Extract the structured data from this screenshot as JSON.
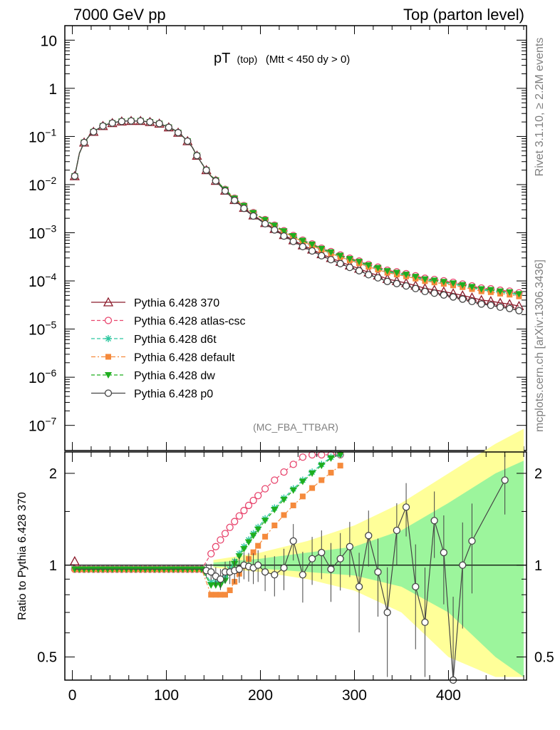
{
  "header": {
    "left": "7000 GeV pp",
    "right": "Top (parton level)"
  },
  "plot_title": {
    "main": "pT",
    "sub1": "(top)",
    "sub2": "(Mtt < 450 dy > 0)"
  },
  "side_labels": {
    "rivet": "Rivet 3.1.10, ≥ 2.2M events",
    "mcplots": "mcplots.cern.ch [arXiv:1306.3436]"
  },
  "analysis_tag": "(MC_FBA_TTBAR)",
  "ratio_ylabel": "Ratio to Pythia 6.428 370",
  "chart_data": [
    {
      "type": "scatter",
      "panel": "main",
      "xlim": [
        -8,
        483
      ],
      "ylim": [
        3e-08,
        20
      ],
      "log_y": true,
      "y_ticks": [
        {
          "v": 1e-07,
          "label": "10",
          "exp": "−7"
        },
        {
          "v": 1e-06,
          "label": "10",
          "exp": "−6"
        },
        {
          "v": 1e-05,
          "label": "10",
          "exp": "−5"
        },
        {
          "v": 0.0001,
          "label": "10",
          "exp": "−4"
        },
        {
          "v": 0.001,
          "label": "10",
          "exp": "−3"
        },
        {
          "v": 0.01,
          "label": "10",
          "exp": "−2"
        },
        {
          "v": 0.1,
          "label": "10",
          "exp": "−1"
        },
        {
          "v": 1,
          "label": "1",
          "exp": ""
        },
        {
          "v": 10,
          "label": "10",
          "exp": ""
        }
      ],
      "series": [
        {
          "name": "Pythia 6.428 370",
          "color": "#8b1a2a",
          "marker": "triangle-open",
          "dash": "solid"
        },
        {
          "name": "Pythia 6.428 atlas-csc",
          "color": "#e8466e",
          "marker": "circle-open",
          "dash": "dashed"
        },
        {
          "name": "Pythia 6.428 d6t",
          "color": "#2ec8a0",
          "marker": "star",
          "dash": "dashed"
        },
        {
          "name": "Pythia 6.428 default",
          "color": "#f58a3c",
          "marker": "square",
          "dash": "dashdot"
        },
        {
          "name": "Pythia 6.428 dw",
          "color": "#1fae1f",
          "marker": "triangle-down",
          "dash": "dashed"
        },
        {
          "name": "Pythia 6.428 p0",
          "color": "#444444",
          "marker": "circle-open",
          "dash": "solid"
        }
      ],
      "curve_points": [
        {
          "x": 2.5,
          "y": 0.015
        },
        {
          "x": 7.5,
          "y": 0.045
        },
        {
          "x": 12.5,
          "y": 0.075
        },
        {
          "x": 17.5,
          "y": 0.1
        },
        {
          "x": 22.5,
          "y": 0.125
        },
        {
          "x": 27.5,
          "y": 0.145
        },
        {
          "x": 32.5,
          "y": 0.165
        },
        {
          "x": 37.5,
          "y": 0.18
        },
        {
          "x": 42.5,
          "y": 0.19
        },
        {
          "x": 47.5,
          "y": 0.2
        },
        {
          "x": 52.5,
          "y": 0.205
        },
        {
          "x": 57.5,
          "y": 0.21
        },
        {
          "x": 62.5,
          "y": 0.21
        },
        {
          "x": 67.5,
          "y": 0.21
        },
        {
          "x": 72.5,
          "y": 0.21
        },
        {
          "x": 77.5,
          "y": 0.205
        },
        {
          "x": 82.5,
          "y": 0.2
        },
        {
          "x": 87.5,
          "y": 0.195
        },
        {
          "x": 92.5,
          "y": 0.185
        },
        {
          "x": 97.5,
          "y": 0.17
        },
        {
          "x": 102.5,
          "y": 0.155
        },
        {
          "x": 107.5,
          "y": 0.14
        },
        {
          "x": 112.5,
          "y": 0.12
        },
        {
          "x": 117.5,
          "y": 0.1
        },
        {
          "x": 122.5,
          "y": 0.08
        },
        {
          "x": 127.5,
          "y": 0.06
        },
        {
          "x": 132.5,
          "y": 0.04
        },
        {
          "x": 137.5,
          "y": 0.028
        },
        {
          "x": 142.5,
          "y": 0.02
        },
        {
          "x": 147.5,
          "y": 0.015
        },
        {
          "x": 152.5,
          "y": 0.012
        },
        {
          "x": 157.5,
          "y": 0.0095
        },
        {
          "x": 162.5,
          "y": 0.0075
        },
        {
          "x": 167.5,
          "y": 0.006
        },
        {
          "x": 172.5,
          "y": 0.0048
        },
        {
          "x": 177.5,
          "y": 0.004
        },
        {
          "x": 182.5,
          "y": 0.0033
        },
        {
          "x": 187.5,
          "y": 0.0027
        },
        {
          "x": 192.5,
          "y": 0.0023
        },
        {
          "x": 197.5,
          "y": 0.002
        },
        {
          "x": 205,
          "y": 0.0016
        },
        {
          "x": 215,
          "y": 0.0012
        },
        {
          "x": 225,
          "y": 0.0009
        },
        {
          "x": 235,
          "y": 0.0007
        },
        {
          "x": 245,
          "y": 0.00055
        },
        {
          "x": 255,
          "y": 0.00045
        },
        {
          "x": 265,
          "y": 0.00036
        },
        {
          "x": 275,
          "y": 0.0003
        },
        {
          "x": 285,
          "y": 0.00025
        },
        {
          "x": 295,
          "y": 0.00021
        },
        {
          "x": 305,
          "y": 0.00018
        },
        {
          "x": 315,
          "y": 0.00015
        },
        {
          "x": 325,
          "y": 0.00013
        },
        {
          "x": 335,
          "y": 0.00011
        },
        {
          "x": 345,
          "y": 0.0001
        },
        {
          "x": 355,
          "y": 9e-05
        },
        {
          "x": 365,
          "y": 8e-05
        },
        {
          "x": 375,
          "y": 7e-05
        },
        {
          "x": 385,
          "y": 6.5e-05
        },
        {
          "x": 395,
          "y": 6e-05
        },
        {
          "x": 405,
          "y": 5.5e-05
        },
        {
          "x": 415,
          "y": 5e-05
        },
        {
          "x": 425,
          "y": 4.5e-05
        },
        {
          "x": 435,
          "y": 4e-05
        },
        {
          "x": 445,
          "y": 3.8e-05
        },
        {
          "x": 455,
          "y": 3.5e-05
        },
        {
          "x": 465,
          "y": 3.3e-05
        },
        {
          "x": 475,
          "y": 3e-05
        }
      ]
    },
    {
      "type": "scatter",
      "panel": "ratio",
      "xlabel": "",
      "ylabel": "Ratio to Pythia 6.428 370",
      "xlim": [
        -8,
        483
      ],
      "ylim": [
        0.42,
        2.35
      ],
      "x_ticks": [
        0,
        100,
        200,
        300,
        400
      ],
      "y_ticks": [
        0.5,
        1,
        2
      ],
      "reference_line": 1,
      "band_points": [
        {
          "x": 150,
          "green": 0.02,
          "yellow": 0.04
        },
        {
          "x": 200,
          "green": 0.05,
          "yellow": 0.1
        },
        {
          "x": 250,
          "green": 0.1,
          "yellow": 0.2
        },
        {
          "x": 300,
          "green": 0.15,
          "yellow": 0.35
        },
        {
          "x": 350,
          "green": 0.3,
          "yellow": 0.6
        },
        {
          "x": 400,
          "green": 0.6,
          "yellow": 1.0
        },
        {
          "x": 450,
          "green": 1.0,
          "yellow": 1.5
        },
        {
          "x": 480,
          "green": 1.2,
          "yellow": 1.8
        }
      ],
      "p0_points": [
        {
          "x": 142.5,
          "y": 0.96
        },
        {
          "x": 147.5,
          "y": 0.95
        },
        {
          "x": 152.5,
          "y": 0.92
        },
        {
          "x": 157.5,
          "y": 0.9
        },
        {
          "x": 162.5,
          "y": 0.95
        },
        {
          "x": 167.5,
          "y": 0.95
        },
        {
          "x": 172.5,
          "y": 0.96
        },
        {
          "x": 177.5,
          "y": 0.97
        },
        {
          "x": 182.5,
          "y": 1.0
        },
        {
          "x": 187.5,
          "y": 0.99
        },
        {
          "x": 192.5,
          "y": 0.98
        },
        {
          "x": 197.5,
          "y": 1.0
        },
        {
          "x": 205,
          "y": 0.95
        },
        {
          "x": 215,
          "y": 0.93
        },
        {
          "x": 225,
          "y": 0.98
        },
        {
          "x": 235,
          "y": 1.2
        },
        {
          "x": 245,
          "y": 0.93
        },
        {
          "x": 255,
          "y": 1.05
        },
        {
          "x": 265,
          "y": 1.1
        },
        {
          "x": 275,
          "y": 0.97
        },
        {
          "x": 285,
          "y": 1.05
        },
        {
          "x": 295,
          "y": 1.15
        },
        {
          "x": 305,
          "y": 0.85
        },
        {
          "x": 315,
          "y": 1.25
        },
        {
          "x": 325,
          "y": 0.95
        },
        {
          "x": 335,
          "y": 0.7
        },
        {
          "x": 345,
          "y": 1.3
        },
        {
          "x": 355,
          "y": 1.55
        },
        {
          "x": 365,
          "y": 0.85
        },
        {
          "x": 375,
          "y": 0.65
        },
        {
          "x": 385,
          "y": 1.4
        },
        {
          "x": 395,
          "y": 1.1
        },
        {
          "x": 405,
          "y": 0.42
        },
        {
          "x": 415,
          "y": 1.0
        },
        {
          "x": 425,
          "y": 1.2
        },
        {
          "x": 460,
          "y": 1.9
        }
      ]
    }
  ]
}
